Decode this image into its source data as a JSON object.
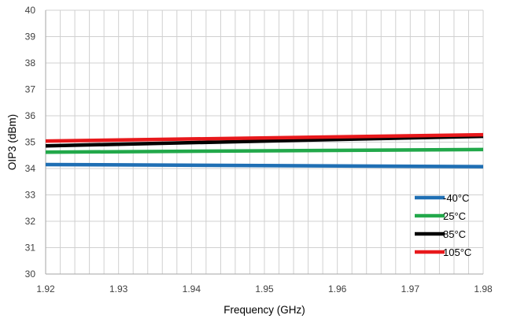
{
  "chart_data": {
    "type": "line",
    "title": "",
    "xlabel": "Frequency (GHz)",
    "ylabel": "OIP3 (dBm)",
    "xlim": [
      1.92,
      1.98
    ],
    "ylim": [
      30,
      40
    ],
    "x_ticks": [
      "1.92",
      "1.93",
      "1.94",
      "1.95",
      "1.96",
      "1.97",
      "1.98"
    ],
    "y_ticks": [
      "30",
      "31",
      "32",
      "33",
      "34",
      "35",
      "36",
      "37",
      "38",
      "39",
      "40"
    ],
    "grid": true,
    "legend_position": "bottom-right",
    "series": [
      {
        "name": "-40°C",
        "color": "#1f6fb4",
        "x": [
          1.92,
          1.98
        ],
        "y": [
          34.15,
          34.07
        ]
      },
      {
        "name": "25°C",
        "color": "#22a84a",
        "x": [
          1.92,
          1.98
        ],
        "y": [
          34.62,
          34.72
        ]
      },
      {
        "name": "85°C",
        "color": "#000000",
        "x": [
          1.92,
          1.98
        ],
        "y": [
          34.86,
          35.22
        ]
      },
      {
        "name": "105°C",
        "color": "#e8191c",
        "x": [
          1.92,
          1.98
        ],
        "y": [
          35.04,
          35.28
        ]
      }
    ]
  }
}
